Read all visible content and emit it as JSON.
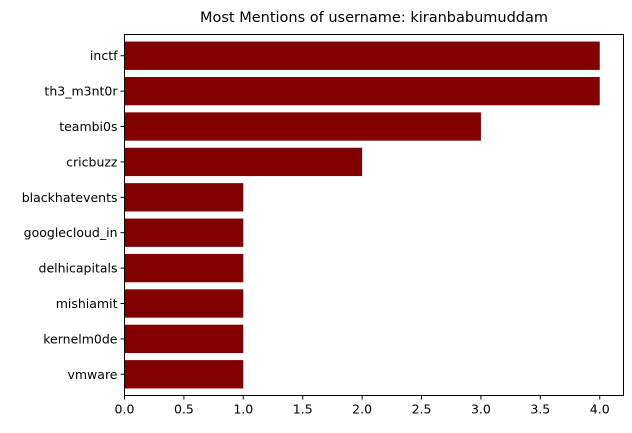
{
  "chart_data": {
    "type": "bar",
    "orientation": "horizontal",
    "title": "Most Mentions of username: kiranbabumuddam",
    "xlabel": "",
    "ylabel": "",
    "categories": [
      "inctf",
      "th3_m3nt0r",
      "teambi0s",
      "cricbuzz",
      "blackhatevents",
      "googlecloud_in",
      "delhicapitals",
      "mishiamit",
      "kernelm0de",
      "vmware"
    ],
    "values": [
      4,
      4,
      3,
      2,
      1,
      1,
      1,
      1,
      1,
      1
    ],
    "xlim": [
      0,
      4.2
    ],
    "xticks": [
      "0.0",
      "0.5",
      "1.0",
      "1.5",
      "2.0",
      "2.5",
      "3.0",
      "3.5",
      "4.0"
    ],
    "grid": false,
    "bar_color": "#800000"
  }
}
